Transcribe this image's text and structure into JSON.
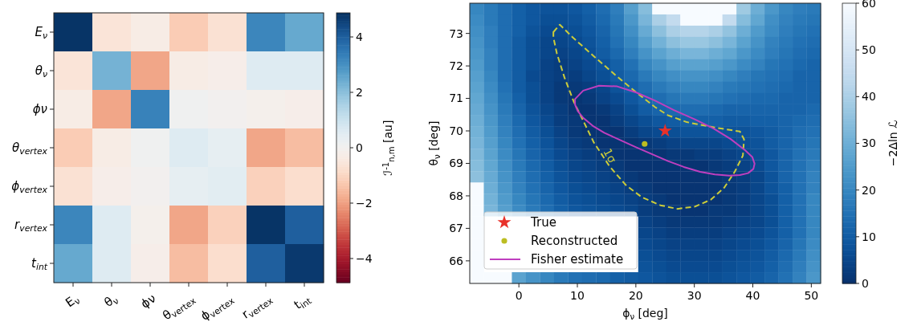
{
  "chart_data": [
    {
      "type": "heatmap",
      "categories": [
        "E$_{ν}$",
        "θ$_{ν}$",
        "ϕν",
        "θ$_{vertex}$",
        "ϕ$_{vertex}$",
        "r$_{vertex}$",
        "t$_{int}$"
      ],
      "y_categories": [
        "E$_{ν}$",
        "θ$_{ν}$",
        "ϕν",
        "θ$_{vertex}$",
        "ϕ$_{vertex}$",
        "r$_{vertex}$",
        "t$_{int}$"
      ],
      "cells": [
        [
          4.8,
          -0.6,
          -0.3,
          -1.2,
          -0.7,
          3.2,
          2.5
        ],
        [
          -0.6,
          2.3,
          -1.9,
          -0.3,
          -0.2,
          0.6,
          0.6
        ],
        [
          -0.3,
          -1.9,
          3.3,
          0.1,
          0.0,
          -0.1,
          -0.2
        ],
        [
          -1.2,
          -0.3,
          0.1,
          0.6,
          0.4,
          -1.9,
          -1.5
        ],
        [
          -0.7,
          -0.2,
          0.0,
          0.4,
          0.5,
          -1.1,
          -0.8
        ],
        [
          3.2,
          0.6,
          -0.1,
          -1.9,
          -1.1,
          4.8,
          4.0
        ],
        [
          2.5,
          0.6,
          -0.2,
          -1.5,
          -0.8,
          4.0,
          4.7
        ]
      ],
      "clim": [
        -4.87,
        4.87
      ],
      "cticks": [
        {
          "value": -4,
          "label": "−4"
        },
        {
          "value": -2,
          "label": "−2"
        },
        0,
        2,
        4
      ],
      "clabel": "ℐ$^{-1}$$_{n,m}$ [au]"
    },
    {
      "type": "heatmap",
      "xlabel": "ϕ$_{ν}$ [deg]",
      "ylabel": "θ$_{ν}$ [deg]",
      "clabel": "−2Δln ℒ",
      "x": [
        -7.2,
        -4.8,
        -2.4,
        0,
        2.4,
        4.8,
        7.2,
        9.6,
        12,
        14.4,
        16.8,
        19.2,
        21.6,
        24,
        26.4,
        28.8,
        31.2,
        33.6,
        36,
        38.4,
        40.8,
        43.2,
        45.6,
        48,
        50.4
      ],
      "y": [
        73.76,
        73.41,
        73.07,
        72.72,
        72.38,
        72.03,
        71.69,
        71.34,
        71.0,
        70.65,
        70.31,
        69.96,
        69.62,
        69.27,
        68.93,
        68.58,
        68.24,
        67.89,
        67.55,
        67.2,
        66.86,
        66.51,
        66.17,
        65.82,
        65.48
      ],
      "cells": [
        [
          20,
          17,
          14,
          11,
          9,
          8,
          8,
          9,
          11,
          14,
          18,
          26,
          34,
          60,
          60,
          60,
          60,
          60,
          60,
          38,
          30,
          24,
          20,
          18,
          17
        ],
        [
          21,
          17,
          14,
          11,
          9,
          7,
          7,
          8,
          10,
          13,
          17,
          24,
          32,
          40,
          45,
          60,
          60,
          60,
          45,
          34,
          28,
          22,
          19,
          17,
          16
        ],
        [
          22,
          18,
          14,
          11,
          8,
          6,
          6,
          7,
          9,
          12,
          16,
          22,
          29,
          35,
          40,
          42,
          42,
          40,
          36,
          30,
          25,
          21,
          18,
          16,
          15
        ],
        [
          23,
          18,
          14,
          10,
          7,
          5,
          5,
          6,
          8,
          11,
          15,
          20,
          26,
          31,
          35,
          37,
          37,
          35,
          32,
          27,
          23,
          19,
          17,
          15,
          14
        ],
        [
          24,
          19,
          14,
          10,
          7,
          5,
          4,
          5,
          7,
          10,
          13,
          18,
          23,
          27,
          30,
          32,
          32,
          30,
          28,
          24,
          21,
          18,
          16,
          14,
          13
        ],
        [
          25,
          19,
          14,
          10,
          7,
          4,
          3,
          4,
          6,
          8,
          11,
          15,
          20,
          23,
          26,
          27,
          27,
          26,
          24,
          21,
          19,
          16,
          15,
          13,
          12
        ],
        [
          26,
          20,
          14,
          10,
          6,
          4,
          3,
          3,
          5,
          7,
          10,
          13,
          17,
          20,
          22,
          23,
          23,
          22,
          20,
          18,
          16,
          15,
          14,
          12,
          12
        ],
        [
          27,
          21,
          15,
          10,
          7,
          4,
          2,
          2,
          3,
          5,
          8,
          11,
          14,
          17,
          19,
          20,
          20,
          19,
          17,
          16,
          15,
          14,
          13,
          12,
          12
        ],
        [
          28,
          22,
          16,
          11,
          7,
          4,
          2,
          1,
          2,
          4,
          6,
          9,
          12,
          14,
          16,
          17,
          17,
          16,
          15,
          14,
          13,
          13,
          12,
          12,
          12
        ],
        [
          29,
          23,
          17,
          12,
          8,
          5,
          3,
          1,
          1,
          2,
          4,
          7,
          10,
          12,
          13,
          14,
          14,
          13,
          12,
          12,
          12,
          12,
          12,
          12,
          13
        ],
        [
          30,
          24,
          18,
          13,
          9,
          6,
          3,
          2,
          1,
          1,
          3,
          5,
          7,
          9,
          10,
          11,
          11,
          11,
          10,
          10,
          11,
          11,
          12,
          13,
          14
        ],
        [
          31,
          25,
          19,
          14,
          10,
          7,
          4,
          2,
          1,
          1,
          1,
          3,
          5,
          6,
          7,
          8,
          8,
          8,
          8,
          8,
          9,
          10,
          12,
          14,
          15
        ],
        [
          32,
          26,
          20,
          15,
          11,
          8,
          5,
          3,
          2,
          1,
          1,
          1,
          2,
          3,
          4,
          5,
          5,
          5,
          6,
          7,
          8,
          10,
          12,
          14,
          16
        ],
        [
          33,
          27,
          21,
          16,
          12,
          9,
          6,
          4,
          3,
          2,
          1,
          1,
          1,
          1,
          2,
          2,
          3,
          3,
          4,
          5,
          7,
          9,
          12,
          15,
          17
        ],
        [
          34,
          28,
          22,
          17,
          13,
          10,
          7,
          5,
          4,
          3,
          2,
          1,
          1,
          1,
          1,
          1,
          1,
          2,
          3,
          4,
          6,
          9,
          12,
          15,
          18
        ],
        [
          35,
          29,
          23,
          18,
          14,
          11,
          8,
          6,
          5,
          4,
          3,
          2,
          1,
          1,
          1,
          1,
          1,
          1,
          2,
          3,
          5,
          8,
          12,
          15,
          19
        ],
        [
          60,
          30,
          24,
          19,
          15,
          12,
          9,
          7,
          6,
          5,
          4,
          3,
          2,
          1,
          1,
          1,
          1,
          1,
          2,
          3,
          5,
          8,
          11,
          15,
          19
        ],
        [
          60,
          31,
          25,
          20,
          16,
          13,
          10,
          8,
          7,
          6,
          5,
          4,
          3,
          2,
          1,
          1,
          1,
          1,
          2,
          3,
          5,
          7,
          11,
          15,
          20
        ],
        [
          60,
          32,
          26,
          21,
          17,
          14,
          11,
          9,
          8,
          7,
          6,
          5,
          3,
          2,
          2,
          1,
          1,
          2,
          2,
          3,
          5,
          7,
          11,
          15,
          20
        ],
        [
          60,
          null,
          null,
          null,
          null,
          null,
          null,
          null,
          null,
          null,
          null,
          null,
          4,
          3,
          2,
          2,
          2,
          2,
          3,
          4,
          5,
          7,
          11,
          15,
          20
        ],
        [
          60,
          null,
          null,
          null,
          null,
          null,
          null,
          null,
          null,
          null,
          null,
          null,
          5,
          4,
          3,
          3,
          3,
          3,
          4,
          5,
          6,
          8,
          11,
          15,
          20
        ],
        [
          60,
          null,
          null,
          null,
          null,
          null,
          null,
          null,
          null,
          null,
          null,
          null,
          6,
          5,
          4,
          4,
          4,
          4,
          5,
          6,
          7,
          9,
          12,
          16,
          21
        ],
        [
          60,
          null,
          null,
          null,
          null,
          null,
          null,
          null,
          null,
          null,
          null,
          null,
          7,
          6,
          5,
          5,
          5,
          5,
          6,
          7,
          8,
          10,
          13,
          17,
          22
        ],
        [
          60,
          null,
          null,
          null,
          null,
          null,
          null,
          null,
          null,
          null,
          null,
          null,
          8,
          7,
          6,
          6,
          6,
          6,
          7,
          8,
          9,
          11,
          14,
          18,
          23
        ],
        [
          60,
          60,
          60,
          27,
          23,
          20,
          17,
          15,
          14,
          13,
          11,
          10,
          9,
          8,
          7,
          7,
          7,
          7,
          8,
          9,
          10,
          12,
          15,
          19,
          24
        ]
      ],
      "clim": [
        0,
        60
      ],
      "cticks": [
        0,
        10,
        20,
        30,
        40,
        50,
        60
      ],
      "xlim": [
        -8.4,
        51.6
      ],
      "xticks": [
        0,
        10,
        20,
        30,
        40,
        50
      ],
      "ylim": [
        65.305,
        73.93
      ],
      "yticks": [
        66,
        67,
        68,
        69,
        70,
        71,
        72,
        73
      ],
      "series": [
        {
          "type": "scatter",
          "name": "True",
          "color": "#e8312a",
          "marker": "star",
          "x": [
            25.0
          ],
          "values": [
            70.0
          ]
        },
        {
          "type": "scatter",
          "name": "Reconstructed",
          "color": "#bcbd22",
          "marker": "circle",
          "x": [
            21.5
          ],
          "values": [
            69.6
          ]
        }
      ],
      "annotations": [
        "1σ",
        "Fisher estimate"
      ],
      "legend": "bottom left"
    }
  ]
}
